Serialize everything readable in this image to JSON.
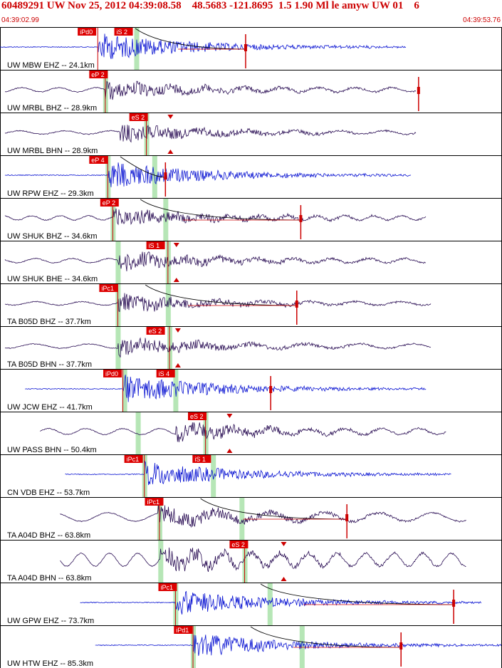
{
  "header": {
    "title": "60489291 UW Nov 25, 2012 04:39:08.58    48.5683 -121.8695  1.5 1.90 Ml le amyw UW 01    6",
    "start_time": "04:39:02.99",
    "end_time": "04:39:53.76"
  },
  "colors": {
    "header_text": "#cc0000",
    "pick_box": "#dd0000",
    "pick_text": "#ffffff",
    "wave_blue": "#0a14d2",
    "wave_purple": "#2b0f55",
    "window_green": "#b6e6b6",
    "grid": "#000000",
    "curve": "#000000",
    "amp_marker": "#cc0000"
  },
  "traces": [
    {
      "label": "UW MBW EHZ -- 24.1km",
      "color": "blue",
      "start": 0.0,
      "end": 0.81,
      "amp": 0.55,
      "onset": 0.195,
      "ramp": 0.0,
      "green": [
        0.272
      ],
      "picks": [
        {
          "text": "iPd0",
          "x": 0.155
        },
        {
          "text": "iS 2",
          "x": 0.228
        }
      ],
      "pline_x": 0.195,
      "curve": true,
      "curve_x": 0.27,
      "amp_x": 0.49,
      "arrows": []
    },
    {
      "label": "UW MRBL BHZ -- 28.9km",
      "color": "purple",
      "start": 0.01,
      "end": 0.83,
      "amp": 0.45,
      "onset": 0.21,
      "ramp": 0.1,
      "green": [
        0.21
      ],
      "picks": [
        {
          "text": "eP 2",
          "x": 0.178
        }
      ],
      "pline_x": 0.21,
      "curve": false,
      "amp_x": 0.835,
      "arrows": []
    },
    {
      "label": "UW MRBL BHN -- 28.9km",
      "color": "purple",
      "start": 0.01,
      "end": 0.83,
      "amp": 0.45,
      "onset": 0.24,
      "ramp": 0.08,
      "green": [
        0.292
      ],
      "picks": [
        {
          "text": "eS 2",
          "x": 0.258
        }
      ],
      "pline_x": 0.292,
      "curve": false,
      "amp_x": null,
      "arrows": [
        0.34
      ]
    },
    {
      "label": "UW RPW EHZ -- 29.3km",
      "color": "blue",
      "start": 0.01,
      "end": 0.82,
      "amp": 0.55,
      "onset": 0.215,
      "ramp": 0.0,
      "green": [
        0.215,
        0.308
      ],
      "picks": [
        {
          "text": "eP 4",
          "x": 0.178
        }
      ],
      "pline_x": 0.215,
      "curve": true,
      "curve_x": 0.24,
      "amp_x": 0.33,
      "arrows": []
    },
    {
      "label": "UW SHUK BHZ -- 34.6km",
      "color": "purple",
      "start": 0.01,
      "end": 0.85,
      "amp": 0.45,
      "onset": 0.225,
      "ramp": 0.1,
      "green": [
        0.225,
        0.33
      ],
      "picks": [
        {
          "text": "eP 2",
          "x": 0.2
        }
      ],
      "pline_x": 0.225,
      "curve": true,
      "curve_x": 0.28,
      "amp_x": 0.6,
      "arrows": []
    },
    {
      "label": "UW SHUK BHE -- 34.6km",
      "color": "purple",
      "start": 0.01,
      "end": 0.85,
      "amp": 0.45,
      "onset": 0.235,
      "ramp": 0.1,
      "green": [
        0.235,
        0.335
      ],
      "picks": [
        {
          "text": "iS 1",
          "x": 0.292
        }
      ],
      "pline_x": 0.335,
      "curve": false,
      "amp_x": null,
      "arrows": [
        0.352
      ]
    },
    {
      "label": "TA B05D BHZ -- 37.7km",
      "color": "purple",
      "start": 0.01,
      "end": 0.86,
      "amp": 0.45,
      "onset": 0.235,
      "ramp": 0.08,
      "green": [
        0.235,
        0.335
      ],
      "picks": [
        {
          "text": "iPc1",
          "x": 0.198
        }
      ],
      "pline_x": 0.235,
      "curve": true,
      "curve_x": 0.29,
      "amp_x": 0.592,
      "arrows": []
    },
    {
      "label": "TA B05D BHN -- 37.7km",
      "color": "purple",
      "start": 0.01,
      "end": 0.86,
      "amp": 0.45,
      "onset": 0.235,
      "ramp": 0.1,
      "green": [
        0.235,
        0.338
      ],
      "picks": [
        {
          "text": "eS 2",
          "x": 0.292
        }
      ],
      "pline_x": 0.338,
      "curve": false,
      "amp_x": null,
      "arrows": [
        0.355
      ]
    },
    {
      "label": "UW JCW EHZ -- 41.7km",
      "color": "blue",
      "start": 0.05,
      "end": 0.85,
      "amp": 0.55,
      "onset": 0.245,
      "ramp": 0.0,
      "green": [
        0.248,
        0.35
      ],
      "picks": [
        {
          "text": "iPd0",
          "x": 0.206
        },
        {
          "text": "iS 4",
          "x": 0.312
        }
      ],
      "pline_x": 0.245,
      "curve": false,
      "amp_x": 0.54,
      "arrows": []
    },
    {
      "label": "UW PASS BHN -- 50.4km",
      "color": "purple",
      "start": 0.08,
      "end": 0.89,
      "amp": 0.45,
      "onset": 0.35,
      "ramp": 0.14,
      "green": [
        0.275,
        0.41
      ],
      "picks": [
        {
          "text": "eS 2",
          "x": 0.375
        }
      ],
      "pline_x": 0.41,
      "curve": false,
      "amp_x": null,
      "arrows": [
        0.458
      ]
    },
    {
      "label": "CN VDB EHZ -- 53.7km",
      "color": "blue",
      "start": 0.13,
      "end": 0.9,
      "amp": 0.5,
      "onset": 0.288,
      "ramp": 0.0,
      "green": [
        0.288,
        0.425
      ],
      "picks": [
        {
          "text": "iPc1",
          "x": 0.248
        },
        {
          "text": "iS 1",
          "x": 0.384
        }
      ],
      "pline_x": 0.288,
      "curve": false,
      "amp_x": null,
      "arrows": []
    },
    {
      "label": "TA A04D BHZ -- 63.8km",
      "color": "purple",
      "start": 0.12,
      "end": 0.93,
      "amp": 0.45,
      "onset": 0.315,
      "ramp": 0.2,
      "green": [
        0.318,
        0.482
      ],
      "picks": [
        {
          "text": "iPc1",
          "x": 0.289
        }
      ],
      "pline_x": 0.318,
      "curve": true,
      "curve_x": 0.4,
      "amp_x": 0.692,
      "arrows": []
    },
    {
      "label": "TA A04D BHN -- 63.8km",
      "color": "purple",
      "start": 0.12,
      "end": 0.93,
      "amp": 0.45,
      "onset": 0.32,
      "ramp": 0.3,
      "green": [
        0.32,
        0.488
      ],
      "picks": [
        {
          "text": "eS 2",
          "x": 0.458
        }
      ],
      "pline_x": 0.488,
      "curve": false,
      "amp_x": null,
      "arrows": [
        0.566
      ]
    },
    {
      "label": "UW GPW EHZ -- 73.7km",
      "color": "blue",
      "start": 0.16,
      "end": 0.96,
      "amp": 0.5,
      "onset": 0.35,
      "ramp": 0.0,
      "green": [
        0.35,
        0.538
      ],
      "picks": [
        {
          "text": "iPc1",
          "x": 0.316
        }
      ],
      "pline_x": 0.35,
      "curve": true,
      "curve_x": 0.52,
      "amp_x": 0.905,
      "arrows": []
    },
    {
      "label": "UW HTW EHZ -- 85.3km",
      "color": "blue",
      "start": 0.19,
      "end": 1.0,
      "amp": 0.5,
      "onset": 0.385,
      "ramp": 0.0,
      "green": [
        0.385,
        0.602
      ],
      "picks": [
        {
          "text": "iPd1",
          "x": 0.347
        }
      ],
      "pline_x": 0.385,
      "curve": true,
      "curve_x": 0.5,
      "amp_x": 0.8,
      "arrows": []
    }
  ]
}
